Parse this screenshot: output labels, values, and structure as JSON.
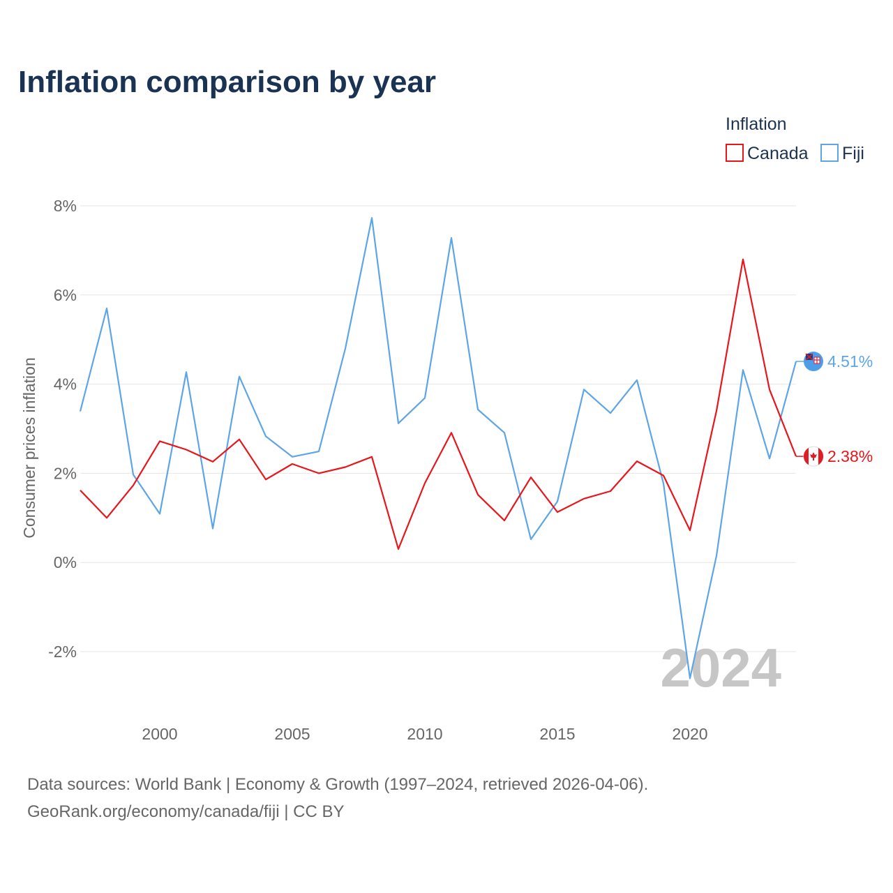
{
  "chart_data": {
    "type": "line",
    "title": "Inflation comparison by year",
    "legend": {
      "title": "Inflation",
      "placement": "top-right"
    },
    "xlabel": "",
    "ylabel": "Consumer prices inflation",
    "xlim": [
      1997,
      2024
    ],
    "ylim": [
      -3,
      8
    ],
    "x_ticks": [
      2000,
      2005,
      2010,
      2015,
      2020
    ],
    "y_ticks": [
      {
        "value": -2,
        "label": "-2%"
      },
      {
        "value": 0,
        "label": "0%"
      },
      {
        "value": 2,
        "label": "2%"
      },
      {
        "value": 4,
        "label": "4%"
      },
      {
        "value": 6,
        "label": "6%"
      },
      {
        "value": 8,
        "label": "8%"
      }
    ],
    "grid": true,
    "x": [
      1997,
      1998,
      1999,
      2000,
      2001,
      2002,
      2003,
      2004,
      2005,
      2006,
      2007,
      2008,
      2009,
      2010,
      2011,
      2012,
      2013,
      2014,
      2015,
      2016,
      2017,
      2018,
      2019,
      2020,
      2021,
      2022,
      2023,
      2024
    ],
    "series": [
      {
        "name": "Canada",
        "color": "#e8151b",
        "icon": "canada-flag-icon",
        "end_label": "2.38%",
        "values": [
          1.62,
          1.0,
          1.73,
          2.72,
          2.53,
          2.26,
          2.76,
          1.86,
          2.21,
          2.0,
          2.14,
          2.37,
          0.3,
          1.78,
          2.91,
          1.52,
          0.94,
          1.91,
          1.13,
          1.43,
          1.6,
          2.27,
          1.95,
          0.72,
          3.4,
          6.8,
          3.88,
          2.38
        ]
      },
      {
        "name": "Fiji",
        "color": "#5da5e6",
        "icon": "fiji-flag-icon",
        "end_label": "4.51%",
        "values": [
          3.39,
          5.7,
          1.97,
          1.09,
          4.27,
          0.76,
          4.17,
          2.83,
          2.37,
          2.49,
          4.8,
          7.73,
          3.12,
          3.69,
          7.28,
          3.43,
          2.91,
          0.52,
          1.37,
          3.88,
          3.35,
          4.09,
          1.77,
          -2.6,
          0.15,
          4.32,
          2.33,
          4.51
        ]
      }
    ],
    "annotations": [
      {
        "text": "2024",
        "placement": "bottom-right"
      }
    ]
  },
  "footer": {
    "line1": "Data sources: World Bank | Economy & Growth (1997–2024, retrieved 2026-04-06).",
    "line2": "GeoRank.org/economy/canada/fiji | CC BY"
  }
}
